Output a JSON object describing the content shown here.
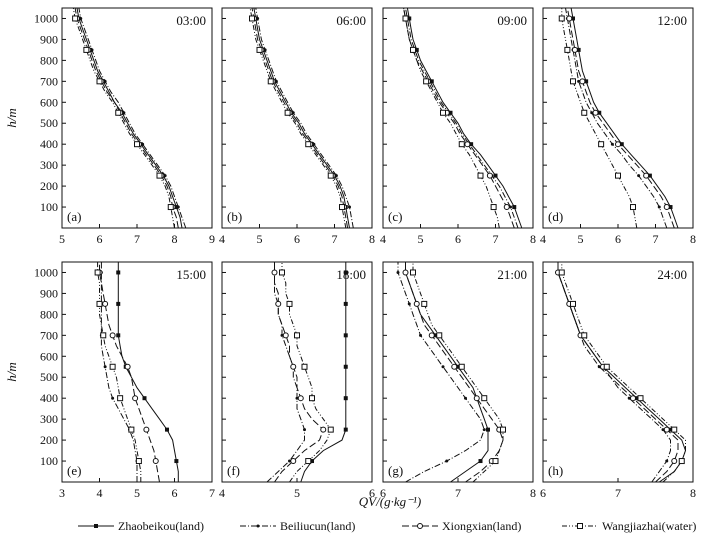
{
  "chart_data": {
    "type": "line",
    "xlabel": "QV/(g·kg⁻¹)",
    "ylabel": "h/m",
    "ylim": [
      0,
      1050
    ],
    "yticks": [
      100,
      200,
      300,
      400,
      500,
      600,
      700,
      800,
      900,
      1000
    ],
    "legend_position": "bottom",
    "series_names": [
      "Zhaobeikou(land)",
      "Beiliucun(land)",
      "Xiongxian(land)",
      "Wangjiazhai(water)"
    ],
    "heights": [
      0,
      50,
      100,
      150,
      200,
      250,
      300,
      350,
      400,
      450,
      500,
      550,
      600,
      650,
      700,
      750,
      800,
      850,
      900,
      950,
      1000,
      1050
    ],
    "panels": [
      {
        "letter": "(a)",
        "time": "03:00",
        "xlim": [
          5,
          9
        ],
        "xticks": [
          5,
          6,
          7,
          8,
          9
        ],
        "series": [
          {
            "name": "Zhaobeikou(land)",
            "values": [
              8.2,
              8.15,
              8.05,
              7.95,
              7.85,
              7.7,
              7.5,
              7.3,
              7.1,
              6.9,
              6.75,
              6.6,
              6.4,
              6.25,
              6.1,
              5.95,
              5.85,
              5.75,
              5.65,
              5.55,
              5.45,
              5.4
            ]
          },
          {
            "name": "Beiliucun(land)",
            "values": [
              8.3,
              8.2,
              8.1,
              8.0,
              7.9,
              7.75,
              7.55,
              7.35,
              7.15,
              6.95,
              6.8,
              6.65,
              6.5,
              6.3,
              6.15,
              6.0,
              5.9,
              5.8,
              5.7,
              5.6,
              5.5,
              5.45
            ]
          },
          {
            "name": "Xiongxian(land)",
            "values": [
              8.1,
              8.05,
              7.95,
              7.9,
              7.8,
              7.65,
              7.45,
              7.25,
              7.05,
              6.85,
              6.7,
              6.55,
              6.4,
              6.2,
              6.05,
              5.9,
              5.8,
              5.7,
              5.6,
              5.5,
              5.4,
              5.35
            ]
          },
          {
            "name": "Wangjiazhai(water)",
            "values": [
              8.0,
              7.95,
              7.9,
              7.85,
              7.75,
              7.6,
              7.4,
              7.2,
              7.0,
              6.8,
              6.65,
              6.5,
              6.35,
              6.15,
              6.0,
              5.85,
              5.75,
              5.65,
              5.55,
              5.45,
              5.35,
              5.3
            ]
          }
        ]
      },
      {
        "letter": "(b)",
        "time": "06:00",
        "xlim": [
          4,
          8
        ],
        "xticks": [
          4,
          5,
          6,
          7,
          8
        ],
        "series": [
          {
            "name": "Zhaobeikou(land)",
            "values": [
              7.4,
              7.35,
              7.3,
              7.25,
              7.15,
              7.0,
              6.8,
              6.6,
              6.4,
              6.2,
              6.05,
              5.85,
              5.7,
              5.55,
              5.4,
              5.3,
              5.2,
              5.1,
              5.0,
              4.95,
              4.9,
              4.85
            ]
          },
          {
            "name": "Beiliucun(land)",
            "values": [
              7.5,
              7.45,
              7.4,
              7.3,
              7.2,
              7.05,
              6.85,
              6.65,
              6.45,
              6.25,
              6.1,
              5.9,
              5.75,
              5.6,
              5.45,
              5.35,
              5.25,
              5.15,
              5.05,
              5.0,
              4.95,
              4.9
            ]
          },
          {
            "name": "Xiongxian(land)",
            "values": [
              7.35,
              7.3,
              7.25,
              7.2,
              7.1,
              6.95,
              6.75,
              6.55,
              6.35,
              6.15,
              6.0,
              5.8,
              5.65,
              5.5,
              5.35,
              5.25,
              5.15,
              5.05,
              4.95,
              4.9,
              4.85,
              4.8
            ]
          },
          {
            "name": "Wangjiazhai(water)",
            "values": [
              7.3,
              7.25,
              7.2,
              7.15,
              7.05,
              6.9,
              6.7,
              6.5,
              6.3,
              6.1,
              5.95,
              5.75,
              5.6,
              5.45,
              5.3,
              5.2,
              5.1,
              5.0,
              4.9,
              4.85,
              4.8,
              4.75
            ]
          }
        ]
      },
      {
        "letter": "(c)",
        "time": "09:00",
        "xlim": [
          4,
          8
        ],
        "xticks": [
          4,
          5,
          6,
          7,
          8
        ],
        "series": [
          {
            "name": "Zhaobeikou(land)",
            "values": [
              7.7,
              7.6,
              7.5,
              7.35,
              7.2,
              7.0,
              6.8,
              6.6,
              6.35,
              6.15,
              6.0,
              5.8,
              5.6,
              5.45,
              5.3,
              5.15,
              5.0,
              4.9,
              4.8,
              4.75,
              4.7,
              4.65
            ]
          },
          {
            "name": "Beiliucun(land)",
            "values": [
              7.6,
              7.5,
              7.4,
              7.25,
              7.1,
              6.9,
              6.7,
              6.5,
              6.3,
              6.1,
              5.95,
              5.75,
              5.55,
              5.4,
              5.25,
              5.1,
              4.95,
              4.85,
              4.75,
              4.7,
              4.65,
              4.6
            ]
          },
          {
            "name": "Xiongxian(land)",
            "values": [
              7.5,
              7.4,
              7.3,
              7.15,
              7.0,
              6.85,
              6.65,
              6.45,
              6.25,
              6.05,
              5.9,
              5.7,
              5.5,
              5.35,
              5.2,
              5.05,
              4.9,
              4.8,
              4.7,
              4.65,
              4.6,
              4.55
            ]
          },
          {
            "name": "Wangjiazhai(water)",
            "values": [
              7.1,
              7.05,
              6.95,
              6.85,
              6.75,
              6.6,
              6.45,
              6.3,
              6.1,
              5.95,
              5.8,
              5.6,
              5.45,
              5.3,
              5.15,
              5.0,
              4.9,
              4.8,
              4.7,
              4.65,
              4.6,
              4.55
            ]
          }
        ]
      },
      {
        "letter": "(d)",
        "time": "12:00",
        "xlim": [
          4,
          8
        ],
        "xticks": [
          4,
          5,
          6,
          7,
          8
        ],
        "series": [
          {
            "name": "Zhaobeikou(land)",
            "values": [
              7.6,
              7.5,
              7.4,
              7.25,
              7.05,
              6.85,
              6.6,
              6.35,
              6.1,
              5.9,
              5.7,
              5.5,
              5.35,
              5.25,
              5.15,
              5.05,
              5.0,
              4.95,
              4.9,
              4.85,
              4.8,
              4.75
            ]
          },
          {
            "name": "Beiliucun(land)",
            "values": [
              7.3,
              7.2,
              7.1,
              6.95,
              6.75,
              6.55,
              6.3,
              6.1,
              5.85,
              5.65,
              5.45,
              5.3,
              5.15,
              5.05,
              4.95,
              4.9,
              4.85,
              4.8,
              4.75,
              4.7,
              4.65,
              4.6
            ]
          },
          {
            "name": "Xiongxian(land)",
            "values": [
              7.5,
              7.4,
              7.3,
              7.15,
              6.95,
              6.75,
              6.5,
              6.25,
              6.0,
              5.8,
              5.6,
              5.4,
              5.25,
              5.15,
              5.05,
              4.95,
              4.9,
              4.85,
              4.8,
              4.75,
              4.7,
              4.65
            ]
          },
          {
            "name": "Wangjiazhai(water)",
            "values": [
              6.5,
              6.45,
              6.4,
              6.3,
              6.15,
              6.0,
              5.85,
              5.7,
              5.55,
              5.4,
              5.25,
              5.1,
              5.0,
              4.9,
              4.8,
              4.75,
              4.7,
              4.65,
              4.6,
              4.55,
              4.5,
              4.5
            ]
          }
        ]
      },
      {
        "letter": "(e)",
        "time": "15:00",
        "xlim": [
          3,
          7
        ],
        "xticks": [
          3,
          4,
          5,
          6,
          7
        ],
        "series": [
          {
            "name": "Zhaobeikou(land)",
            "values": [
              6.1,
              6.1,
              6.05,
              6.0,
              5.95,
              5.8,
              5.6,
              5.4,
              5.2,
              5.0,
              4.85,
              4.7,
              4.6,
              4.55,
              4.5,
              4.5,
              4.5,
              4.5,
              4.5,
              4.5,
              4.5,
              4.5
            ]
          },
          {
            "name": "Beiliucun(land)",
            "values": [
              5.0,
              5.0,
              5.0,
              4.95,
              4.9,
              4.8,
              4.65,
              4.5,
              4.35,
              4.25,
              4.2,
              4.15,
              4.1,
              4.05,
              4.05,
              4.05,
              4.05,
              4.05,
              4.05,
              4.05,
              4.05,
              4.05
            ]
          },
          {
            "name": "Xiongxian(land)",
            "values": [
              5.6,
              5.55,
              5.5,
              5.45,
              5.35,
              5.25,
              5.15,
              5.05,
              4.95,
              4.9,
              4.85,
              4.75,
              4.6,
              4.45,
              4.35,
              4.25,
              4.2,
              4.15,
              4.1,
              4.05,
              4.0,
              4.0
            ]
          },
          {
            "name": "Wangjiazhai(water)",
            "values": [
              5.1,
              5.1,
              5.05,
              5.0,
              4.95,
              4.85,
              4.75,
              4.65,
              4.55,
              4.5,
              4.45,
              4.35,
              4.25,
              4.15,
              4.1,
              4.05,
              4.0,
              4.0,
              4.0,
              4.0,
              3.95,
              3.95
            ]
          }
        ]
      },
      {
        "letter": "(f)",
        "time": "18:00",
        "xlim": [
          4,
          6
        ],
        "xticks": [
          4,
          5,
          6
        ],
        "series": [
          {
            "name": "Zhaobeikou(land)",
            "values": [
              5.05,
              5.1,
              5.2,
              5.35,
              5.6,
              5.65,
              5.65,
              5.65,
              5.65,
              5.65,
              5.65,
              5.65,
              5.65,
              5.65,
              5.65,
              5.65,
              5.65,
              5.65,
              5.65,
              5.65,
              5.65,
              5.65
            ]
          },
          {
            "name": "Beiliucun(land)",
            "values": [
              4.6,
              4.75,
              4.9,
              5.0,
              5.1,
              5.1,
              5.05,
              5.0,
              5.0,
              5.0,
              4.95,
              4.95,
              4.9,
              4.85,
              4.8,
              4.8,
              4.75,
              4.75,
              4.7,
              4.7,
              4.7,
              4.7
            ]
          },
          {
            "name": "Xiongxian(land)",
            "values": [
              4.7,
              4.8,
              4.95,
              5.1,
              5.3,
              5.35,
              5.2,
              5.1,
              5.05,
              5.0,
              5.0,
              4.95,
              4.9,
              4.9,
              4.85,
              4.8,
              4.75,
              4.75,
              4.75,
              4.7,
              4.7,
              4.7
            ]
          },
          {
            "name": "Wangjiazhai(water)",
            "values": [
              4.9,
              5.0,
              5.15,
              5.3,
              5.4,
              5.45,
              5.35,
              5.25,
              5.2,
              5.2,
              5.15,
              5.1,
              5.05,
              5.0,
              5.0,
              4.95,
              4.9,
              4.9,
              4.85,
              4.85,
              4.8,
              4.8
            ]
          }
        ]
      },
      {
        "letter": "(g)",
        "time": "21:00",
        "xlim": [
          6,
          8
        ],
        "xticks": [
          6,
          7,
          8
        ],
        "series": [
          {
            "name": "Zhaobeikou(land)",
            "values": [
              6.9,
              7.1,
              7.3,
              7.4,
              7.4,
              7.4,
              7.35,
              7.3,
              7.25,
              7.2,
              7.1,
              7.0,
              6.9,
              6.8,
              6.7,
              6.6,
              6.5,
              6.45,
              6.4,
              6.35,
              6.3,
              6.3
            ]
          },
          {
            "name": "Beiliucun(land)",
            "values": [
              6.3,
              6.55,
              6.85,
              7.1,
              7.3,
              7.35,
              7.3,
              7.2,
              7.1,
              7.0,
              6.9,
              6.8,
              6.7,
              6.6,
              6.5,
              6.45,
              6.4,
              6.35,
              6.3,
              6.25,
              6.2,
              6.2
            ]
          },
          {
            "name": "Xiongxian(land)",
            "values": [
              7.1,
              7.3,
              7.45,
              7.55,
              7.6,
              7.55,
              7.45,
              7.35,
              7.25,
              7.15,
              7.05,
              6.95,
              6.85,
              6.75,
              6.65,
              6.55,
              6.5,
              6.45,
              6.4,
              6.35,
              6.3,
              6.3
            ]
          },
          {
            "name": "Wangjiazhai(water)",
            "values": [
              7.2,
              7.35,
              7.5,
              7.55,
              7.6,
              7.6,
              7.55,
              7.45,
              7.35,
              7.25,
              7.15,
              7.05,
              6.95,
              6.85,
              6.75,
              6.65,
              6.6,
              6.55,
              6.5,
              6.45,
              6.4,
              6.4
            ]
          }
        ]
      },
      {
        "letter": "(h)",
        "time": "24:00",
        "xlim": [
          6,
          8
        ],
        "xticks": [
          6,
          7,
          8
        ],
        "series": [
          {
            "name": "Zhaobeikou(land)",
            "values": [
              7.55,
              7.75,
              7.85,
              7.9,
              7.85,
              7.7,
              7.55,
              7.4,
              7.25,
              7.1,
              6.95,
              6.8,
              6.7,
              6.6,
              6.5,
              6.45,
              6.4,
              6.35,
              6.3,
              6.25,
              6.2,
              6.2
            ]
          },
          {
            "name": "Beiliucun(land)",
            "values": [
              7.45,
              7.55,
              7.65,
              7.7,
              7.7,
              7.6,
              7.45,
              7.3,
              7.15,
              7.0,
              6.9,
              6.75,
              6.65,
              6.55,
              6.5,
              6.45,
              6.4,
              6.35,
              6.3,
              6.25,
              6.2,
              6.2
            ]
          },
          {
            "name": "Xiongxian(land)",
            "values": [
              7.5,
              7.65,
              7.75,
              7.8,
              7.8,
              7.65,
              7.5,
              7.35,
              7.2,
              7.05,
              6.9,
              6.8,
              6.7,
              6.6,
              6.5,
              6.45,
              6.4,
              6.35,
              6.3,
              6.25,
              6.2,
              6.2
            ]
          },
          {
            "name": "Wangjiazhai(water)",
            "values": [
              7.6,
              7.75,
              7.85,
              7.9,
              7.9,
              7.75,
              7.6,
              7.45,
              7.3,
              7.15,
              7.0,
              6.85,
              6.75,
              6.65,
              6.55,
              6.5,
              6.45,
              6.4,
              6.35,
              6.3,
              6.25,
              6.25
            ]
          }
        ]
      }
    ]
  }
}
